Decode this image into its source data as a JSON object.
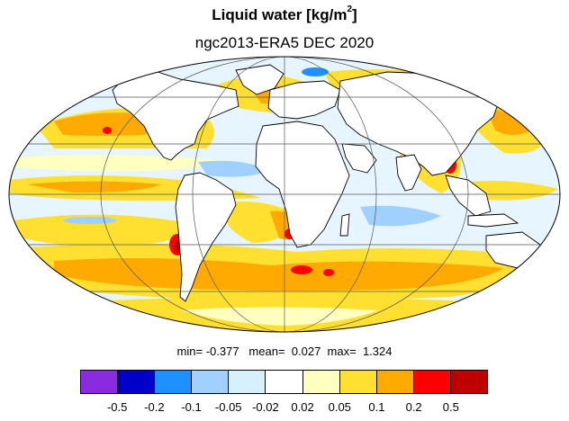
{
  "title": {
    "text": "Liquid water  [kg/m",
    "superscript": "2",
    "suffix": "]"
  },
  "subtitle": "ngc2013-ERA5 DEC 2020",
  "stats": {
    "min_label": "min=",
    "min_value": "-0.377",
    "mean_label": "mean=",
    "mean_value": "0.027",
    "max_label": "max=",
    "max_value": "1.324"
  },
  "colorbar": {
    "colors": [
      "#8a2be2",
      "#0000c8",
      "#1e90ff",
      "#a0d0ff",
      "#d6f0ff",
      "#ffffff",
      "#ffffc0",
      "#ffe030",
      "#ffaa00",
      "#ff0000",
      "#c00000"
    ],
    "labels": [
      "-0.5",
      "-0.2",
      "-0.1",
      "-0.05",
      "-0.02",
      "0.02",
      "0.05",
      "0.1",
      "0.2",
      "0.5"
    ]
  },
  "map": {
    "projection": "Mollweide",
    "palette": {
      "ocean_light": "#e6f5ff",
      "yellow": "#ffe030",
      "orange": "#ffaa00",
      "pale_yellow": "#ffffc0",
      "light_blue": "#a0d0ff",
      "red": "#ff0000",
      "dark_red": "#c00000",
      "blue": "#1e90ff",
      "dark_blue": "#0000c8",
      "land": "#ffffff"
    }
  }
}
